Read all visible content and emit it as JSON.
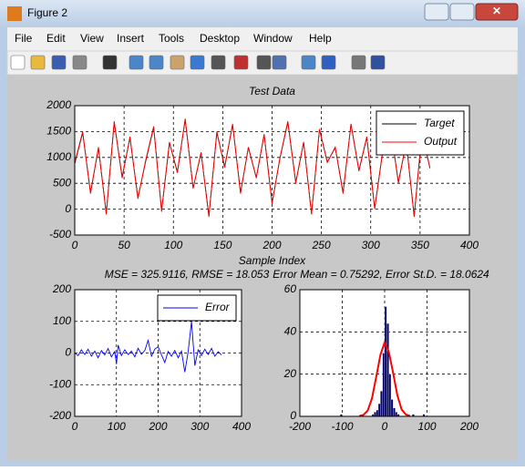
{
  "window": {
    "title": "Figure 2",
    "menu": [
      "File",
      "Edit",
      "View",
      "Insert",
      "Tools",
      "Desktop",
      "Window",
      "Help"
    ]
  },
  "chart_data": [
    {
      "type": "line",
      "title": "Test Data",
      "xlabel": "Sample Index",
      "x": [
        0,
        8,
        16,
        24,
        32,
        40,
        48,
        56,
        64,
        72,
        80,
        88,
        96,
        104,
        112,
        120,
        128,
        136,
        144,
        152,
        160,
        168,
        176,
        184,
        192,
        200,
        208,
        216,
        224,
        232,
        240,
        248,
        256,
        264,
        272,
        280,
        288,
        296,
        304,
        312,
        320,
        328,
        336,
        344,
        352,
        360
      ],
      "series": [
        {
          "name": "Target",
          "color": "#000000",
          "values": [
            880,
            1480,
            320,
            1180,
            -80,
            1680,
            620,
            1380,
            220,
            930,
            1580,
            -30,
            1280,
            720,
            1730,
            410,
            1090,
            -130,
            1480,
            820,
            1630,
            320,
            1190,
            610,
            1440,
            120,
            990,
            1680,
            520,
            1290,
            -90,
            1540,
            910,
            1190,
            320,
            1640,
            740,
            1390,
            20,
            1090,
            1590,
            520,
            1290,
            -130,
            1490,
            790
          ]
        },
        {
          "name": "Output",
          "color": "#ff0000",
          "values": [
            900,
            1500,
            300,
            1200,
            -100,
            1700,
            600,
            1400,
            200,
            950,
            1600,
            -50,
            1300,
            700,
            1750,
            400,
            1100,
            -150,
            1500,
            800,
            1650,
            300,
            1200,
            600,
            1450,
            100,
            1000,
            1700,
            500,
            1300,
            -100,
            1550,
            900,
            1200,
            300,
            1650,
            750,
            1400,
            0,
            1100,
            1600,
            500,
            1300,
            -150,
            1500,
            800
          ]
        }
      ],
      "xlim": [
        0,
        400
      ],
      "xticks": [
        0,
        50,
        100,
        150,
        200,
        250,
        300,
        350,
        400
      ],
      "ylim": [
        -500,
        2000
      ],
      "yticks": [
        -500,
        0,
        500,
        1000,
        1500,
        2000
      ],
      "grid": true,
      "legend": "upper-right"
    },
    {
      "type": "line",
      "title": "MSE = 325.9116, RMSE = 18.053",
      "x": [
        0,
        8,
        16,
        24,
        32,
        40,
        48,
        56,
        64,
        72,
        80,
        88,
        96,
        100,
        104,
        112,
        120,
        128,
        136,
        144,
        152,
        160,
        168,
        176,
        184,
        192,
        200,
        208,
        216,
        224,
        232,
        240,
        248,
        256,
        264,
        272,
        280,
        288,
        296,
        304,
        312,
        320,
        328,
        336,
        344,
        352
      ],
      "series": [
        {
          "name": "Error",
          "color": "#0000ff",
          "values": [
            0,
            -8,
            10,
            -5,
            12,
            -10,
            6,
            -15,
            8,
            -6,
            14,
            -12,
            5,
            -35,
            25,
            -8,
            10,
            -5,
            6,
            -12,
            15,
            -4,
            8,
            40,
            -10,
            12,
            20,
            -6,
            -30,
            5,
            -10,
            8,
            -15,
            6,
            -60,
            3,
            100,
            -40,
            10,
            -8,
            12,
            -5,
            15,
            -10,
            4,
            -6
          ]
        }
      ],
      "xlim": [
        0,
        400
      ],
      "xticks": [
        0,
        100,
        200,
        300,
        400
      ],
      "ylim": [
        -200,
        200
      ],
      "yticks": [
        -200,
        -100,
        0,
        100,
        200
      ],
      "grid": true,
      "legend": "upper-right"
    },
    {
      "type": "histogram",
      "title": "Error Mean = 0.75292, Error St.D. = 18.0624",
      "bins": [
        -105,
        -100,
        -95,
        -90,
        -85,
        -80,
        -75,
        -70,
        -65,
        -60,
        -55,
        -50,
        -45,
        -40,
        -35,
        -30,
        -25,
        -20,
        -15,
        -10,
        -5,
        0,
        5,
        10,
        15,
        20,
        25,
        30,
        35,
        40,
        45,
        50,
        55,
        60,
        65,
        70,
        75,
        80,
        85,
        90,
        95,
        100
      ],
      "counts": [
        1,
        0,
        0,
        0,
        0,
        0,
        0,
        0,
        0,
        0,
        0,
        0,
        0,
        0,
        0,
        1,
        2,
        3,
        6,
        12,
        30,
        52,
        44,
        20,
        8,
        4,
        2,
        1,
        0,
        0,
        0,
        0,
        0,
        0,
        1,
        0,
        0,
        0,
        0,
        1,
        0
      ],
      "color": "#000066",
      "fit": {
        "color": "#ff0000",
        "x": [
          -60,
          -50,
          -40,
          -30,
          -20,
          -10,
          0,
          10,
          20,
          30,
          40,
          50,
          60
        ],
        "values": [
          0.12,
          0.68,
          2.7,
          8.5,
          18.5,
          29.2,
          35,
          30.5,
          20.6,
          10.1,
          3.3,
          0.85,
          0.16
        ]
      },
      "xlim": [
        -200,
        200
      ],
      "xticks": [
        -200,
        -100,
        0,
        100,
        200
      ],
      "ylim": [
        0,
        60
      ],
      "yticks": [
        0,
        20,
        40,
        60
      ],
      "grid": true
    }
  ]
}
